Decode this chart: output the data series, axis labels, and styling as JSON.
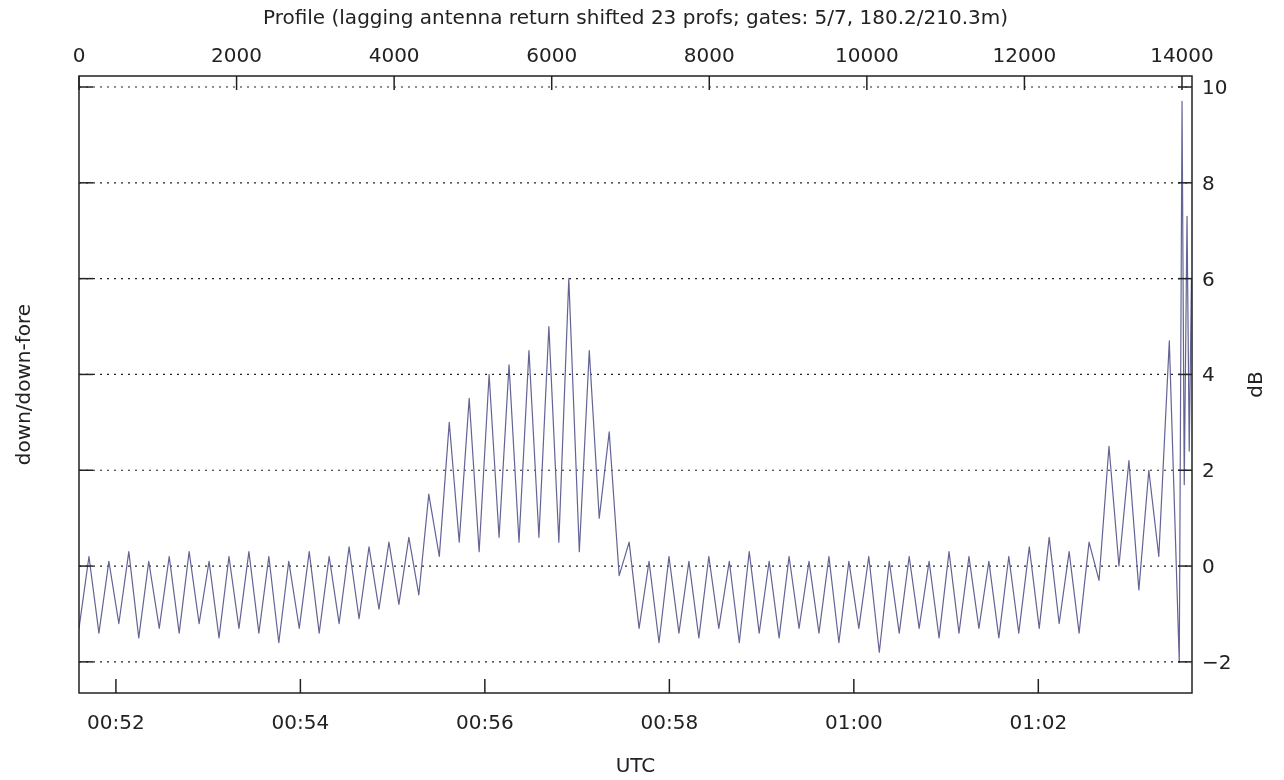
{
  "chart_data": {
    "type": "line",
    "title": "Profile (lagging antenna return shifted 23 profs; gates: 5/7, 180.2/210.3m)",
    "xlabel": "UTC",
    "ylabel": "down/down-fore",
    "y2label": "dB",
    "xlim": [
      0.86,
      1.0611
    ],
    "xticks": [
      {
        "value": 0.86667,
        "label": "00:52"
      },
      {
        "value": 0.9,
        "label": "00:54"
      },
      {
        "value": 0.93333,
        "label": "00:56"
      },
      {
        "value": 0.96667,
        "label": "00:58"
      },
      {
        "value": 1.0,
        "label": "01:00"
      },
      {
        "value": 1.03333,
        "label": "01:02"
      }
    ],
    "x2lim": [
      0,
      14127
    ],
    "x2ticks": [
      0,
      2000,
      4000,
      6000,
      8000,
      10000,
      12000,
      14000
    ],
    "y2lim": [
      -2.65,
      10.23
    ],
    "y2ticks": [
      {
        "value": -2,
        "label": "−2"
      },
      0,
      2,
      4,
      6,
      8,
      10
    ],
    "grid": "y",
    "series": [
      {
        "color": "#636396",
        "axis": "y2",
        "x": [
          0.86,
          0.8618,
          0.8636,
          0.8654,
          0.8672,
          0.869,
          0.8708,
          0.8726,
          0.8745,
          0.8763,
          0.8781,
          0.8799,
          0.8817,
          0.8835,
          0.8853,
          0.8871,
          0.8889,
          0.8907,
          0.8925,
          0.8943,
          0.8961,
          0.8979,
          0.8998,
          0.9016,
          0.9034,
          0.9052,
          0.907,
          0.9088,
          0.9106,
          0.9124,
          0.9142,
          0.916,
          0.9178,
          0.9196,
          0.9214,
          0.9232,
          0.9251,
          0.9269,
          0.9287,
          0.9305,
          0.9323,
          0.9341,
          0.9359,
          0.9377,
          0.9395,
          0.9413,
          0.9431,
          0.9449,
          0.9467,
          0.9485,
          0.9504,
          0.9522,
          0.954,
          0.9558,
          0.9576,
          0.9594,
          0.9612,
          0.963,
          0.9648,
          0.9666,
          0.9684,
          0.9702,
          0.972,
          0.9738,
          0.9756,
          0.9775,
          0.9793,
          0.9811,
          0.9829,
          0.9847,
          0.9865,
          0.9883,
          0.9901,
          0.9919,
          0.9937,
          0.9955,
          0.9973,
          0.9991,
          1.0009,
          1.0027,
          1.0046,
          1.0064,
          1.0082,
          1.01,
          1.0118,
          1.0136,
          1.0154,
          1.0172,
          1.019,
          1.0208,
          1.0226,
          1.0244,
          1.0262,
          1.028,
          1.0298,
          1.0317,
          1.0335,
          1.0353,
          1.0371,
          1.0389,
          1.0407,
          1.0425,
          1.0443,
          1.0461,
          1.0479,
          1.0497,
          1.0515,
          1.0533,
          1.0551,
          1.057,
          1.0588,
          1.0593,
          1.0597,
          1.0602,
          1.0606,
          1.061
        ],
        "values": [
          -1.3,
          0.2,
          -1.4,
          0.1,
          -1.2,
          0.3,
          -1.5,
          0.1,
          -1.3,
          0.2,
          -1.4,
          0.3,
          -1.2,
          0.1,
          -1.5,
          0.2,
          -1.3,
          0.3,
          -1.4,
          0.2,
          -1.6,
          0.1,
          -1.3,
          0.3,
          -1.4,
          0.2,
          -1.2,
          0.4,
          -1.1,
          0.4,
          -0.9,
          0.5,
          -0.8,
          0.6,
          -0.6,
          1.5,
          0.2,
          3.0,
          0.5,
          3.5,
          0.3,
          4.0,
          0.6,
          4.2,
          0.5,
          4.5,
          0.6,
          5.0,
          0.5,
          6.0,
          0.3,
          4.5,
          1.0,
          2.8,
          -0.2,
          0.5,
          -1.3,
          0.1,
          -1.6,
          0.2,
          -1.4,
          0.1,
          -1.5,
          0.2,
          -1.3,
          0.1,
          -1.6,
          0.3,
          -1.4,
          0.1,
          -1.5,
          0.2,
          -1.3,
          0.1,
          -1.4,
          0.2,
          -1.6,
          0.1,
          -1.3,
          0.2,
          -1.8,
          0.1,
          -1.4,
          0.2,
          -1.3,
          0.1,
          -1.5,
          0.3,
          -1.4,
          0.2,
          -1.3,
          0.1,
          -1.5,
          0.2,
          -1.4,
          0.4,
          -1.3,
          0.6,
          -1.2,
          0.3,
          -1.4,
          0.5,
          -0.3,
          2.5,
          0.0,
          2.2,
          -0.5,
          2.0,
          0.2,
          4.7,
          -2.0,
          9.7,
          1.7,
          7.3,
          2.4,
          6.0
        ]
      }
    ]
  }
}
